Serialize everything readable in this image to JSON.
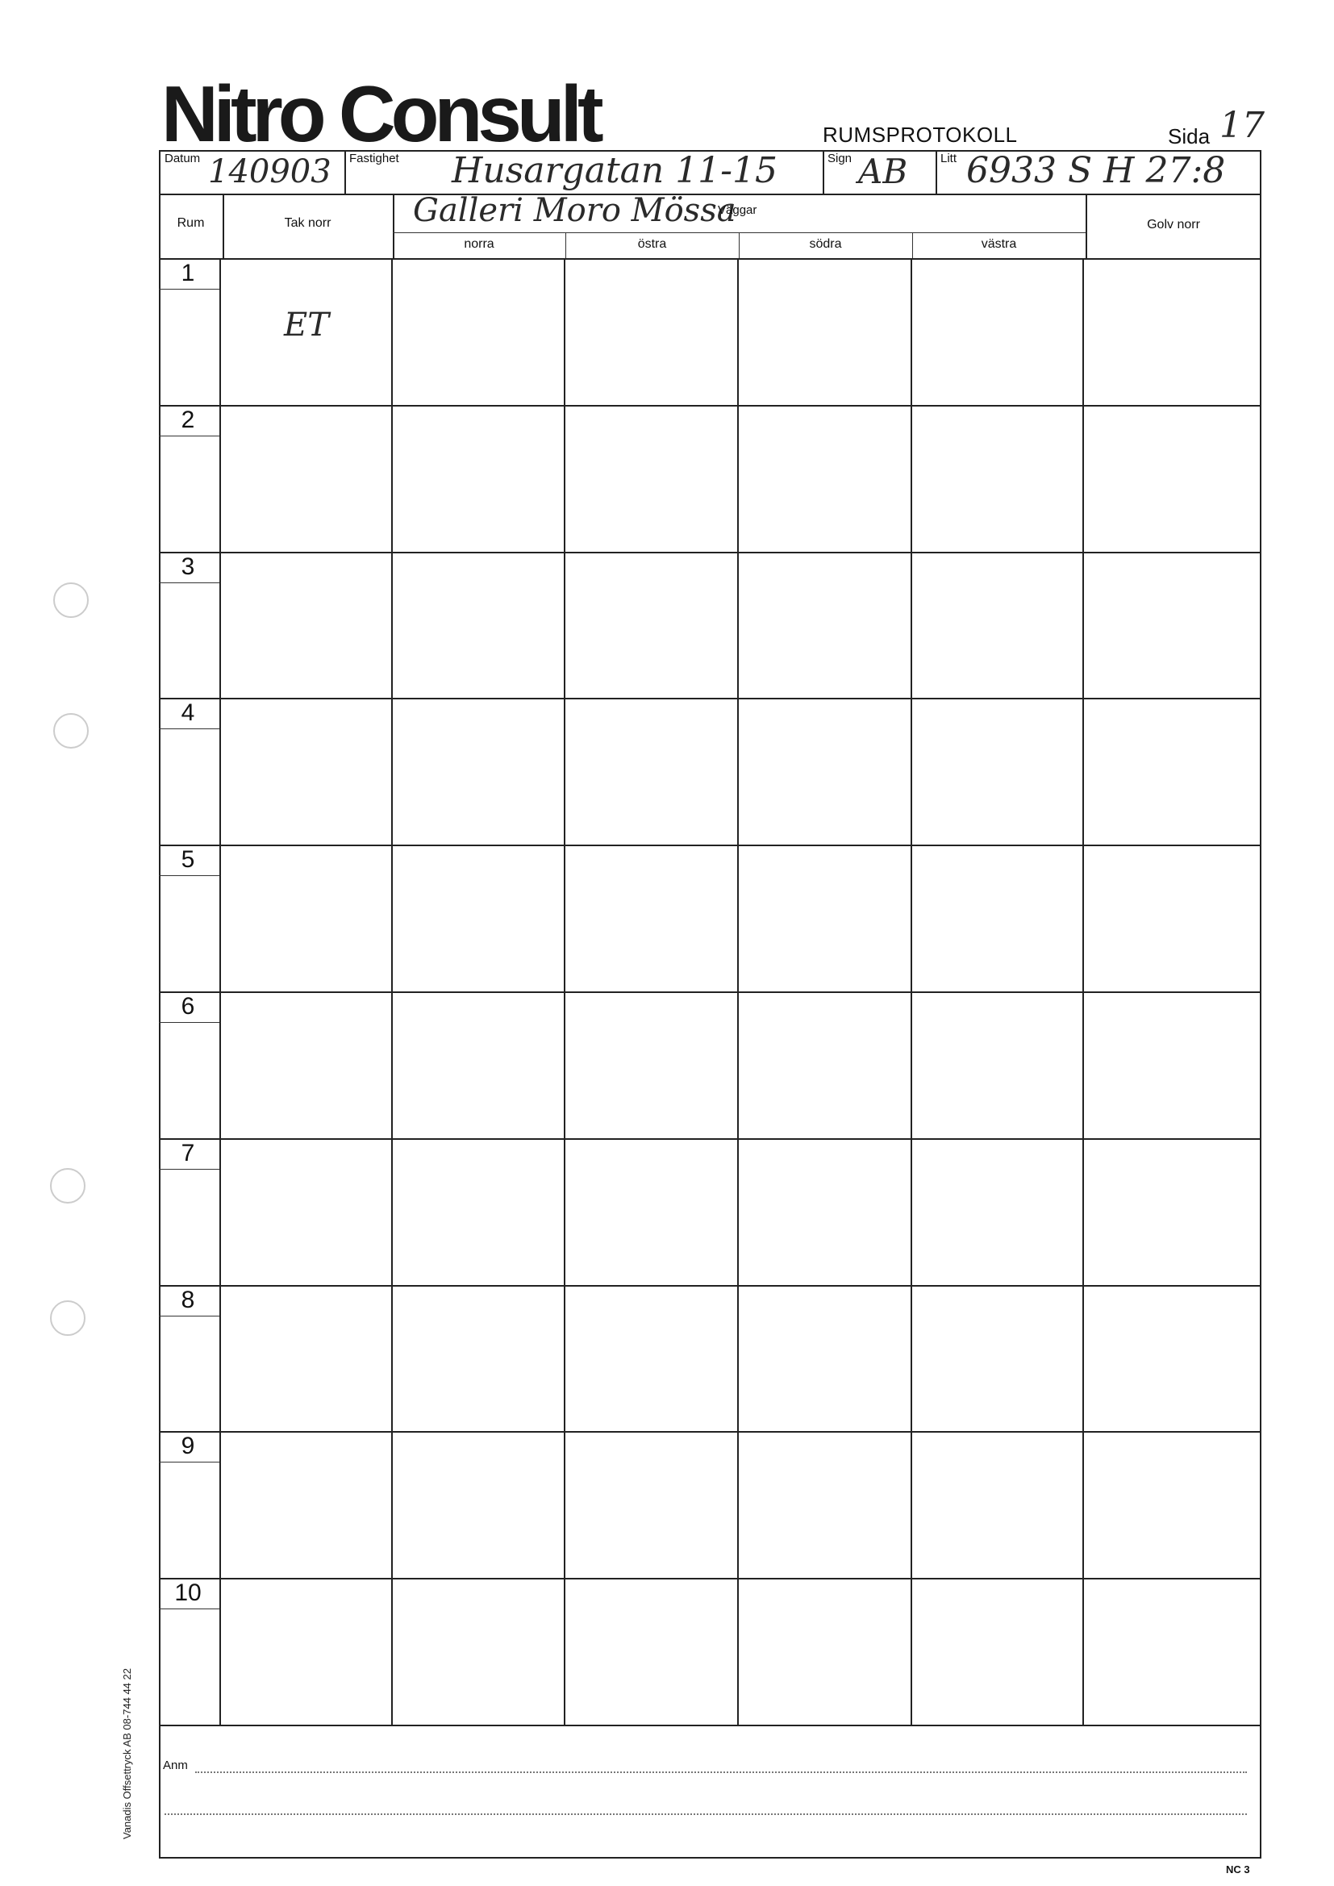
{
  "header": {
    "brand": "Nitro Consult",
    "title": "RUMSPROTOKOLL",
    "sida_label": "Sida",
    "sida_value": "17"
  },
  "fields": {
    "datum_label": "Datum",
    "datum_value": "140903",
    "fastighet_label": "Fastighet",
    "fastighet_value": "Husargatan 11-15",
    "sign_label": "Sign",
    "sign_value": "AB",
    "litt_label": "Litt",
    "litt_value": "6933 S H 27:8"
  },
  "columns": {
    "rum": "Rum",
    "tak": "Tak norr",
    "vaggar_note": "Galleri Moro Mössa",
    "vaggar": "Väggar",
    "norra": "norra",
    "ostra": "östra",
    "sodra": "södra",
    "vastra": "västra",
    "golv": "Golv norr"
  },
  "rows": [
    {
      "num": "1",
      "tak_note": "ET"
    },
    {
      "num": "2",
      "tak_note": ""
    },
    {
      "num": "3",
      "tak_note": ""
    },
    {
      "num": "4",
      "tak_note": ""
    },
    {
      "num": "5",
      "tak_note": ""
    },
    {
      "num": "6",
      "tak_note": ""
    },
    {
      "num": "7",
      "tak_note": ""
    },
    {
      "num": "8",
      "tak_note": ""
    },
    {
      "num": "9",
      "tak_note": ""
    },
    {
      "num": "10",
      "tak_note": ""
    }
  ],
  "footer": {
    "anm_label": "Anm",
    "side_print": "Vanadis Offsettryck AB 08-744 44 22",
    "form_code": "NC 3"
  }
}
